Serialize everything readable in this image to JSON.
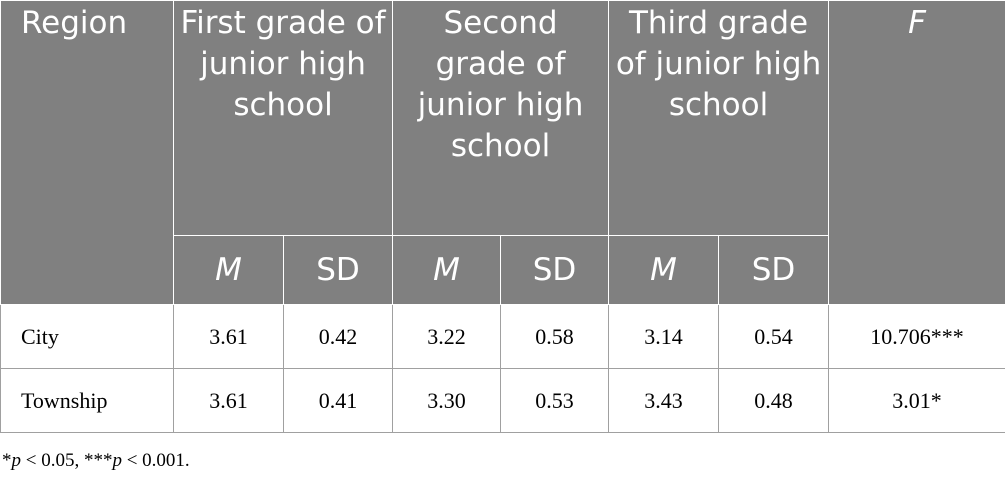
{
  "table": {
    "header": [
      "Region",
      "First grade of junior high school",
      "Second grade of junior high school",
      "Third grade of junior high school",
      "F"
    ],
    "subheader": [
      "M",
      "SD",
      "M",
      "SD",
      "M",
      "SD"
    ],
    "rows": [
      [
        "City",
        "3.61",
        "0.42",
        "3.22",
        "0.58",
        "3.14",
        "0.54",
        "10.706***"
      ],
      [
        "Township",
        "3.61",
        "0.41",
        "3.30",
        "0.53",
        "3.43",
        "0.48",
        "3.01*"
      ]
    ]
  },
  "footnote": [
    "*",
    "p",
    " < 0.05, ***",
    "p",
    " < 0.001."
  ]
}
